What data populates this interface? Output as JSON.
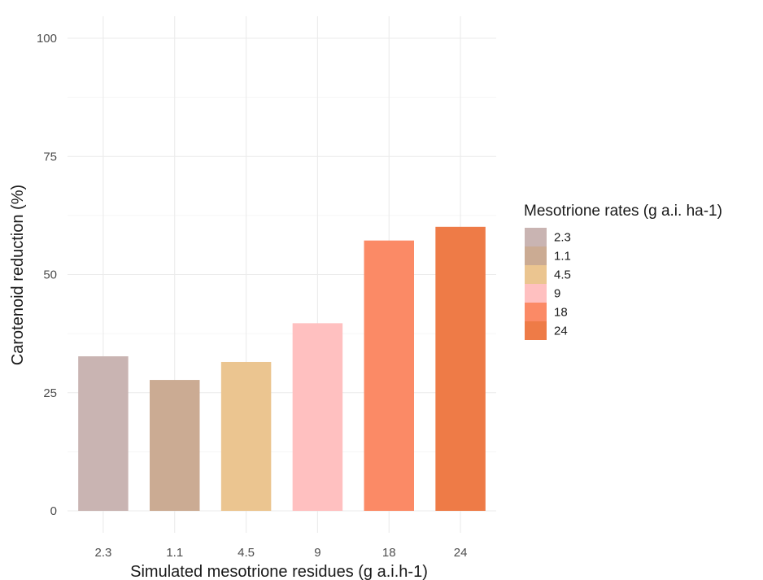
{
  "chart_data": {
    "type": "bar",
    "title": "",
    "xlabel": "Simulated mesotrione residues (g a.i.h-1)",
    "ylabel": "Carotenoid reduction (%)",
    "categories": [
      "2.3",
      "1.1",
      "4.5",
      "9",
      "18",
      "24"
    ],
    "values": [
      32.7,
      27.7,
      31.5,
      39.7,
      57.2,
      60.1
    ],
    "colors": [
      "#c9b4b2",
      "#cbab93",
      "#ebc590",
      "#ffc0c0",
      "#fb8a66",
      "#ee7b47"
    ],
    "ylim": [
      0,
      100
    ],
    "yticks": [
      0,
      25,
      50,
      75,
      100
    ],
    "grid": true,
    "legend": {
      "title": "Mesotrione rates (g a.i. ha-1)",
      "position": "right",
      "entries": [
        "2.3",
        "1.1",
        "4.5",
        "9",
        "18",
        "24"
      ]
    }
  }
}
